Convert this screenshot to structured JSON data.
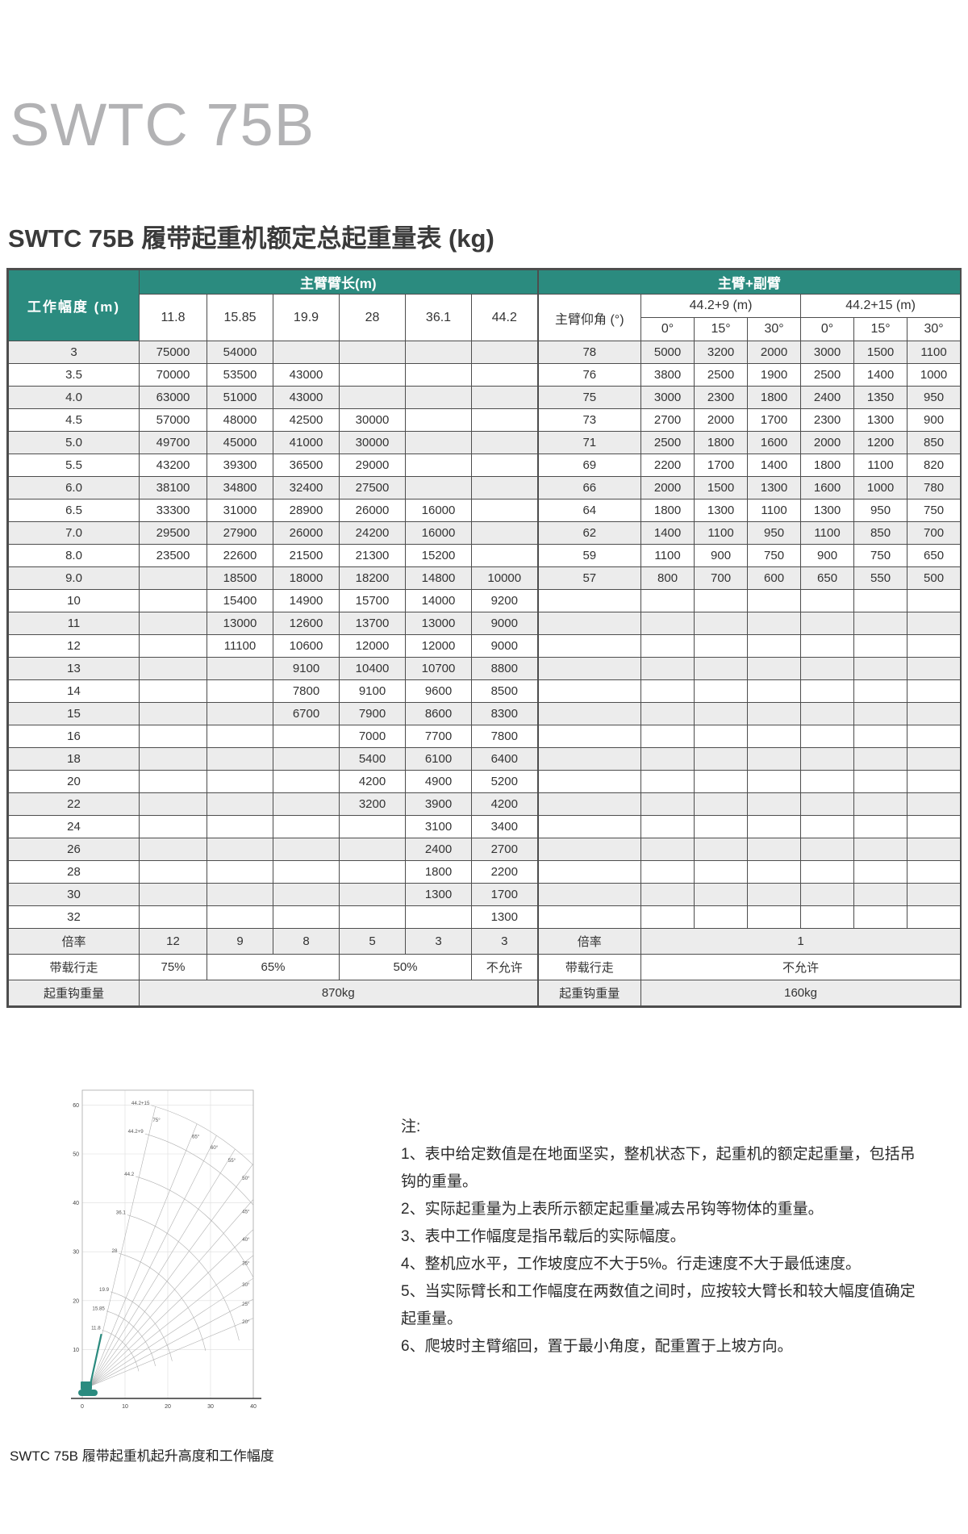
{
  "page": {
    "model_title": "SWTC 75B",
    "table_title": "SWTC 75B 履带起重机额定总起重量表 (kg)",
    "chart_caption": "SWTC 75B 履带起重机起升高度和工作幅度"
  },
  "colors": {
    "header_teal": "#2b8b7f",
    "row_alt_gray": "#ececec",
    "border_dark": "#4d4d4d",
    "title_gray": "#b2b2b4"
  },
  "table": {
    "header": {
      "radius_label": "工作幅度 (m)",
      "main_boom_label": "主臂臂长(m)",
      "main_boom_lengths": [
        "11.8",
        "15.85",
        "19.9",
        "28",
        "36.1",
        "44.2"
      ],
      "jib_label": "主臂+副臂",
      "boom_angle_label": "主臂仰角 (°)",
      "jib_groups": [
        {
          "label": "44.2+9 (m)",
          "angles": [
            "0°",
            "15°",
            "30°"
          ]
        },
        {
          "label": "44.2+15 (m)",
          "angles": [
            "0°",
            "15°",
            "30°"
          ]
        }
      ]
    },
    "rows": [
      {
        "radius": "3",
        "main": [
          "75000",
          "54000",
          "",
          "",
          "",
          ""
        ],
        "angle": "78",
        "jib": [
          "5000",
          "3200",
          "2000",
          "3000",
          "1500",
          "1100"
        ]
      },
      {
        "radius": "3.5",
        "main": [
          "70000",
          "53500",
          "43000",
          "",
          "",
          ""
        ],
        "angle": "76",
        "jib": [
          "3800",
          "2500",
          "1900",
          "2500",
          "1400",
          "1000"
        ]
      },
      {
        "radius": "4.0",
        "main": [
          "63000",
          "51000",
          "43000",
          "",
          "",
          ""
        ],
        "angle": "75",
        "jib": [
          "3000",
          "2300",
          "1800",
          "2400",
          "1350",
          "950"
        ]
      },
      {
        "radius": "4.5",
        "main": [
          "57000",
          "48000",
          "42500",
          "30000",
          "",
          ""
        ],
        "angle": "73",
        "jib": [
          "2700",
          "2000",
          "1700",
          "2300",
          "1300",
          "900"
        ]
      },
      {
        "radius": "5.0",
        "main": [
          "49700",
          "45000",
          "41000",
          "30000",
          "",
          ""
        ],
        "angle": "71",
        "jib": [
          "2500",
          "1800",
          "1600",
          "2000",
          "1200",
          "850"
        ]
      },
      {
        "radius": "5.5",
        "main": [
          "43200",
          "39300",
          "36500",
          "29000",
          "",
          ""
        ],
        "angle": "69",
        "jib": [
          "2200",
          "1700",
          "1400",
          "1800",
          "1100",
          "820"
        ]
      },
      {
        "radius": "6.0",
        "main": [
          "38100",
          "34800",
          "32400",
          "27500",
          "",
          ""
        ],
        "angle": "66",
        "jib": [
          "2000",
          "1500",
          "1300",
          "1600",
          "1000",
          "780"
        ]
      },
      {
        "radius": "6.5",
        "main": [
          "33300",
          "31000",
          "28900",
          "26000",
          "16000",
          ""
        ],
        "angle": "64",
        "jib": [
          "1800",
          "1300",
          "1100",
          "1300",
          "950",
          "750"
        ]
      },
      {
        "radius": "7.0",
        "main": [
          "29500",
          "27900",
          "26000",
          "24200",
          "16000",
          ""
        ],
        "angle": "62",
        "jib": [
          "1400",
          "1100",
          "950",
          "1100",
          "850",
          "700"
        ]
      },
      {
        "radius": "8.0",
        "main": [
          "23500",
          "22600",
          "21500",
          "21300",
          "15200",
          ""
        ],
        "angle": "59",
        "jib": [
          "1100",
          "900",
          "750",
          "900",
          "750",
          "650"
        ]
      },
      {
        "radius": "9.0",
        "main": [
          "",
          "18500",
          "18000",
          "18200",
          "14800",
          "10000"
        ],
        "angle": "57",
        "jib": [
          "800",
          "700",
          "600",
          "650",
          "550",
          "500"
        ]
      },
      {
        "radius": "10",
        "main": [
          "",
          "15400",
          "14900",
          "15700",
          "14000",
          "9200"
        ],
        "angle": ""
      },
      {
        "radius": "11",
        "main": [
          "",
          "13000",
          "12600",
          "13700",
          "13000",
          "9000"
        ],
        "angle": ""
      },
      {
        "radius": "12",
        "main": [
          "",
          "11100",
          "10600",
          "12000",
          "12000",
          "9000"
        ],
        "angle": ""
      },
      {
        "radius": "13",
        "main": [
          "",
          "",
          "9100",
          "10400",
          "10700",
          "8800"
        ],
        "angle": ""
      },
      {
        "radius": "14",
        "main": [
          "",
          "",
          "7800",
          "9100",
          "9600",
          "8500"
        ],
        "angle": ""
      },
      {
        "radius": "15",
        "main": [
          "",
          "",
          "6700",
          "7900",
          "8600",
          "8300"
        ],
        "angle": ""
      },
      {
        "radius": "16",
        "main": [
          "",
          "",
          "",
          "7000",
          "7700",
          "7800"
        ],
        "angle": ""
      },
      {
        "radius": "18",
        "main": [
          "",
          "",
          "",
          "5400",
          "6100",
          "6400"
        ],
        "angle": ""
      },
      {
        "radius": "20",
        "main": [
          "",
          "",
          "",
          "4200",
          "4900",
          "5200"
        ],
        "angle": ""
      },
      {
        "radius": "22",
        "main": [
          "",
          "",
          "",
          "3200",
          "3900",
          "4200"
        ],
        "angle": ""
      },
      {
        "radius": "24",
        "main": [
          "",
          "",
          "",
          "",
          "3100",
          "3400"
        ],
        "angle": ""
      },
      {
        "radius": "26",
        "main": [
          "",
          "",
          "",
          "",
          "2400",
          "2700"
        ],
        "angle": ""
      },
      {
        "radius": "28",
        "main": [
          "",
          "",
          "",
          "",
          "1800",
          "2200"
        ],
        "angle": ""
      },
      {
        "radius": "30",
        "main": [
          "",
          "",
          "",
          "",
          "1300",
          "1700"
        ],
        "angle": ""
      },
      {
        "radius": "32",
        "main": [
          "",
          "",
          "",
          "",
          "",
          "1300"
        ],
        "angle": ""
      }
    ],
    "footer": {
      "ratio_label": "倍率",
      "ratio_main": [
        "12",
        "9",
        "8",
        "5",
        "3",
        "3"
      ],
      "ratio_jib": "1",
      "travel_label": "带载行走",
      "travel_main": [
        {
          "text": "75%",
          "span": 1
        },
        {
          "text": "65%",
          "span": 2
        },
        {
          "text": "50%",
          "span": 2
        },
        {
          "text": "不允许",
          "span": 1
        }
      ],
      "travel_jib": "不允许",
      "hook_label": "起重钩重量",
      "hook_main": "870kg",
      "hook_jib": "160kg"
    }
  },
  "notes": {
    "heading": "注:",
    "items": [
      "1、表中给定数值是在地面坚实，整机状态下，起重机的额定起重量，包括吊钩的重量。",
      "2、实际起重量为上表所示额定起重量减去吊钩等物体的重量。",
      "3、表中工作幅度是指吊载后的实际幅度。",
      "4、整机应水平，工作坡度应不大于5%。行走速度不大于最低速度。",
      "5、当实际臂长和工作幅度在两数值之间时，应按较大臂长和较大幅度值确定起重量。",
      "6、爬坡时主臂缩回，置于最小角度，配重置于上坡方向。"
    ]
  },
  "chart_data": {
    "type": "line",
    "title": "SWTC 75B 履带起重机起升高度和工作幅度",
    "xlabel": "",
    "ylabel": "",
    "xlim": [
      0,
      40
    ],
    "ylim": [
      0,
      65
    ],
    "x_ticks": [
      0,
      10,
      20,
      30,
      40
    ],
    "y_ticks": [
      10,
      20,
      30,
      40,
      50,
      60
    ],
    "grid": true,
    "pivot": [
      1.8,
      2.5
    ],
    "boom_angles_deg": [
      20,
      25,
      30,
      35,
      40,
      45,
      50,
      55,
      60,
      65,
      75
    ],
    "boom_configs": [
      {
        "length": 11.8,
        "label": "11.8"
      },
      {
        "length": 15.85,
        "label": "15.85"
      },
      {
        "length": 19.9,
        "label": "19.9"
      },
      {
        "length": 28,
        "label": "28"
      },
      {
        "length": 36.1,
        "label": "36.1"
      },
      {
        "length": 44.2,
        "label": "44.2"
      },
      {
        "length": 53.2,
        "label": "44.2+9"
      },
      {
        "length": 59.2,
        "label": "44.2+15"
      }
    ],
    "accent_color": "#2b8b7f"
  }
}
